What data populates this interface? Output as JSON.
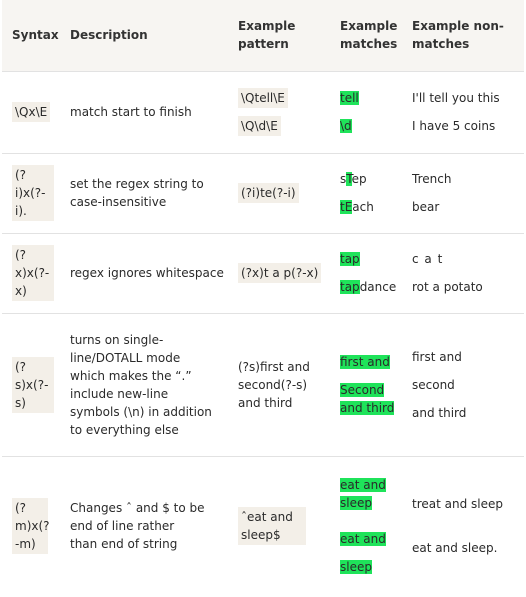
{
  "headers": [
    "Syntax",
    "Description",
    "Example pattern",
    "Example matches",
    "Example non-matches"
  ],
  "rows": [
    {
      "syntax": "\\Qx\\E",
      "description": "match start to finish",
      "patterns": [
        "\\Qtell\\E",
        "\\Q\\d\\E"
      ],
      "matches": [
        [
          {
            "t": "tell",
            "h": true
          }
        ],
        [
          {
            "t": "\\d",
            "h": true
          }
        ]
      ],
      "non_matches": [
        "I'll tell you this",
        "I have 5 coins"
      ]
    },
    {
      "syntax": "(?i)x(?-i).",
      "description": "set the regex string to case-insensitive",
      "patterns": [
        "(?i)te(?-i)"
      ],
      "matches": [
        [
          {
            "t": "s",
            "h": false
          },
          {
            "t": "T",
            "h": true
          },
          {
            "t": "ep",
            "h": false
          }
        ],
        [
          {
            "t": "tE",
            "h": true
          },
          {
            "t": "ach",
            "h": false
          }
        ]
      ],
      "non_matches": [
        "Trench",
        "bear"
      ]
    },
    {
      "syntax": "(?x)x(?-x)",
      "description": "regex ignores whitespace",
      "patterns": [
        "(?x)t a p(?-x)"
      ],
      "matches": [
        [
          {
            "t": "tap",
            "h": true
          }
        ],
        [
          {
            "t": "tap",
            "h": true
          },
          {
            "t": "dance",
            "h": false
          }
        ]
      ],
      "non_matches": [
        "c a t",
        "rot a potato"
      ]
    },
    {
      "syntax": "(?s)x(?-s)",
      "description": "turns on single-line/DOTALL mode which makes the “.” include new-line symbols (\\n) in addition to everything else",
      "patterns": [
        "(?s)first and second(?-s) and third"
      ],
      "matches": [
        [
          {
            "t": "first and",
            "h": true
          }
        ],
        [
          {
            "t": "Second and third",
            "h": true
          }
        ]
      ],
      "non_matches": [
        "first and",
        "second",
        "and third"
      ]
    },
    {
      "syntax": "(?m)x(?-m)",
      "description": "Changes ˆ and $ to be end of line rather than end of string",
      "patterns": [
        "ˆeat and sleep$"
      ],
      "matches": [
        [
          {
            "t": "eat and sleep",
            "h": true
          }
        ],
        [
          {
            "t": "eat and",
            "h": true
          }
        ],
        [
          {
            "t": "sleep",
            "h": true
          }
        ]
      ],
      "non_matches": [
        "treat and sleep",
        "eat and sleep."
      ]
    }
  ]
}
